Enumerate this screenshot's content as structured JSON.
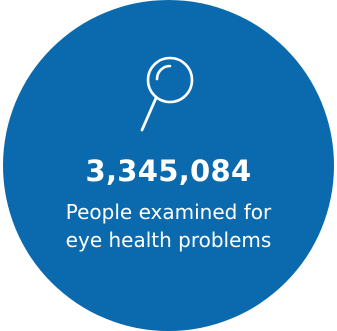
{
  "stat": {
    "value": "3,345,084",
    "description_line_1": "People examined for",
    "description_line_2": "eye health problems",
    "icon": "magnifier-icon"
  },
  "colors": {
    "circle": "#0a6aad",
    "text": "#ffffff"
  }
}
